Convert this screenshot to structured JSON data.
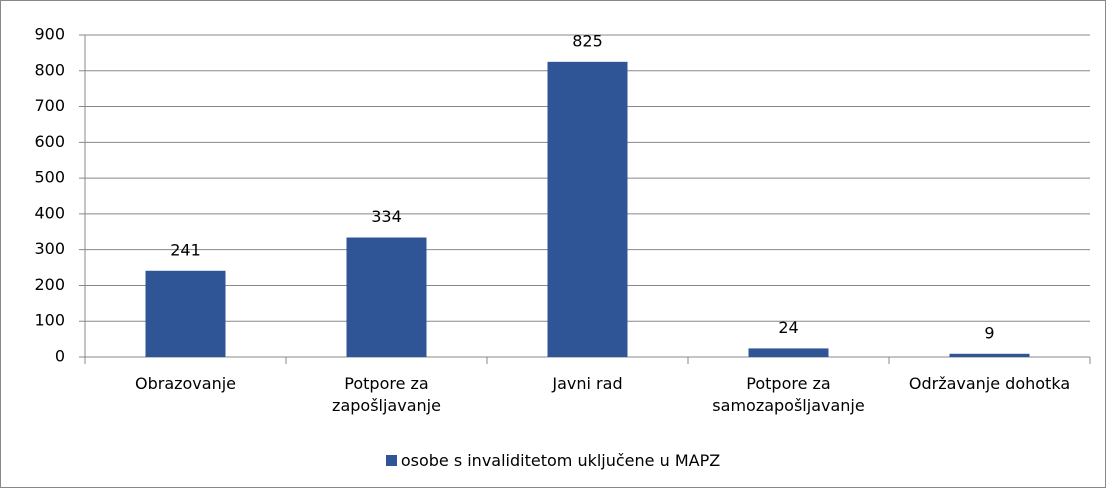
{
  "chart_data": {
    "type": "bar",
    "categories": [
      "Obrazovanje",
      "Potpore za zapošljavanje",
      "Javni rad",
      "Potpore za samozapošljavanje",
      "Održavanje dohotka"
    ],
    "series": [
      {
        "name": "osobe s invaliditetom uključene u MAPZ",
        "color": "#2f5597",
        "values": [
          241,
          334,
          825,
          24,
          9
        ]
      }
    ],
    "ylim": [
      0,
      900
    ],
    "yticks": [
      0,
      100,
      200,
      300,
      400,
      500,
      600,
      700,
      800,
      900
    ],
    "grid": true,
    "legend": "bottom"
  }
}
